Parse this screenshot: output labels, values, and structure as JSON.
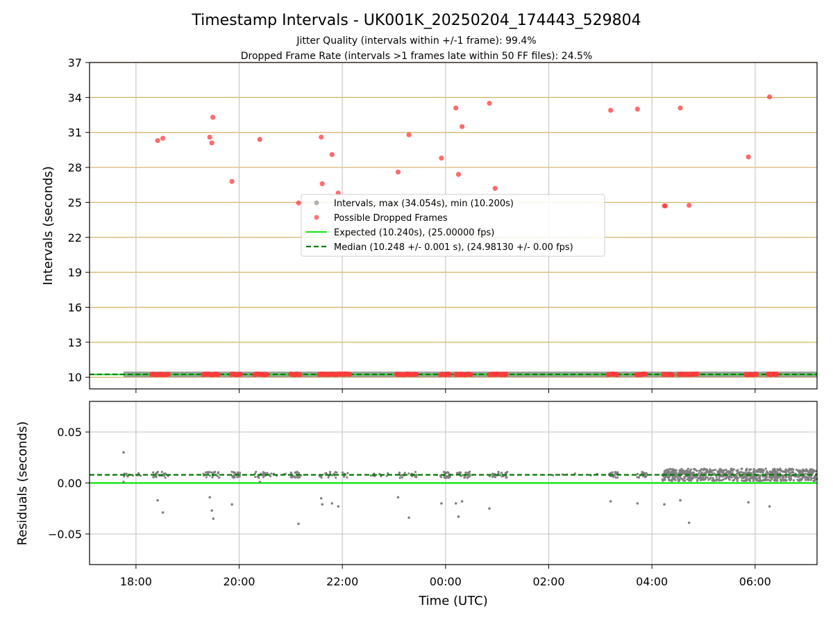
{
  "chart_data": [
    {
      "type": "scatter",
      "title": "Timestamp Intervals - UK001K_20250204_174443_529804",
      "subtitle_lines": [
        "Jitter Quality (intervals within +/-1 frame): 99.4%",
        "Dropped Frame Rate (intervals >1 frames late within 50 FF files): 24.5%"
      ],
      "xlabel": "",
      "ylabel": "Intervals (seconds)",
      "x_unit": "hours since 00:00 UTC (2025-02-05)",
      "xlim": [
        -6.9,
        7.2
      ],
      "ylim": [
        9.0,
        37.0
      ],
      "yticks": [
        10,
        13,
        16,
        19,
        22,
        25,
        28,
        31,
        34,
        37
      ],
      "ytick_labels": [
        "10",
        "13",
        "16",
        "19",
        "22",
        "25",
        "28",
        "31",
        "34",
        "37"
      ],
      "grid": true,
      "legend_position": "center",
      "legend": [
        "Intervals, max (34.054s), min (10.200s)",
        "Possible Dropped Frames",
        "Expected (10.240s), (25.00000 fps)",
        "Median (10.248 +/- 0.001 s), (24.98130 +/- 0.00 fps)"
      ],
      "series": [
        {
          "name": "Intervals, max (34.054s), min (10.200s)",
          "style": "points",
          "color": "#808080",
          "x_start": -6.24,
          "x_end": 7.2,
          "y_base": 10.248
        },
        {
          "name": "Possible Dropped Frames",
          "style": "points",
          "color": "#ff3b3b",
          "points": [
            [
              -5.58,
              30.3
            ],
            [
              -5.48,
              30.5
            ],
            [
              -4.57,
              30.6
            ],
            [
              -4.53,
              30.1
            ],
            [
              -4.51,
              32.3
            ],
            [
              -4.14,
              26.8
            ],
            [
              -3.6,
              30.4
            ],
            [
              -2.85,
              24.95
            ],
            [
              -2.41,
              30.6
            ],
            [
              -2.39,
              26.6
            ],
            [
              -2.2,
              29.1
            ],
            [
              -2.08,
              25.8
            ],
            [
              -0.92,
              27.6
            ],
            [
              -0.71,
              30.8
            ],
            [
              -0.08,
              28.8
            ],
            [
              0.2,
              33.1
            ],
            [
              0.25,
              27.4
            ],
            [
              0.32,
              31.5
            ],
            [
              0.85,
              33.5
            ],
            [
              0.96,
              26.2
            ],
            [
              3.2,
              32.9
            ],
            [
              3.72,
              33.0
            ],
            [
              4.24,
              24.7
            ],
            [
              4.26,
              24.7
            ],
            [
              4.55,
              33.1
            ],
            [
              4.72,
              24.75
            ],
            [
              5.87,
              28.9
            ],
            [
              6.28,
              34.05
            ]
          ],
          "floor_clusters": [
            [
              -5.7,
              -5.35
            ],
            [
              -4.7,
              -4.38
            ],
            [
              -4.15,
              -3.95
            ],
            [
              -3.7,
              -3.45
            ],
            [
              -3.0,
              -2.8
            ],
            [
              -2.45,
              -1.85
            ],
            [
              -0.95,
              -0.55
            ],
            [
              -0.1,
              0.1
            ],
            [
              0.2,
              0.5
            ],
            [
              0.85,
              1.2
            ],
            [
              3.15,
              3.35
            ],
            [
              3.7,
              3.9
            ],
            [
              4.22,
              4.42
            ],
            [
              4.52,
              4.9
            ],
            [
              5.82,
              6.05
            ],
            [
              6.25,
              6.45
            ]
          ]
        },
        {
          "name": "Expected (10.240s), (25.00000 fps)",
          "style": "solid-line",
          "color": "#18e818",
          "y": 10.24
        },
        {
          "name": "Median (10.248 +/- 0.001 s), (24.98130 +/- 0.00 fps)",
          "style": "dashed-line",
          "color": "#007a00",
          "y": 10.248
        }
      ]
    },
    {
      "type": "scatter",
      "title": "",
      "xlabel": "Time (UTC)",
      "ylabel": "Residuals (seconds)",
      "x_unit": "hours since 00:00 UTC (2025-02-05)",
      "xlim": [
        -6.9,
        7.2
      ],
      "xticks": [
        -6,
        -4,
        -2,
        0,
        2,
        4,
        6
      ],
      "xtick_labels": [
        "18:00",
        "20:00",
        "22:00",
        "00:00",
        "02:00",
        "04:00",
        "06:00"
      ],
      "ylim": [
        -0.08,
        0.08
      ],
      "yticks": [
        0.05,
        0.0,
        -0.05
      ],
      "ytick_labels": [
        "0.05",
        "0.00",
        "−0.05"
      ],
      "grid": true,
      "series": [
        {
          "name": "Residuals",
          "style": "points",
          "color": "#808080",
          "baseline": 0.008,
          "outliers": [
            [
              -6.24,
              0.03
            ],
            [
              -6.24,
              0.001
            ],
            [
              -5.58,
              -0.017
            ],
            [
              -5.48,
              -0.029
            ],
            [
              -4.57,
              -0.014
            ],
            [
              -4.53,
              -0.027
            ],
            [
              -4.5,
              -0.035
            ],
            [
              -4.14,
              -0.021
            ],
            [
              -3.6,
              0.001
            ],
            [
              -2.85,
              -0.04
            ],
            [
              -2.41,
              -0.015
            ],
            [
              -2.39,
              -0.021
            ],
            [
              -2.2,
              -0.02
            ],
            [
              -2.08,
              -0.023
            ],
            [
              -0.92,
              -0.014
            ],
            [
              -0.71,
              -0.034
            ],
            [
              -0.08,
              -0.02
            ],
            [
              0.2,
              -0.02
            ],
            [
              0.25,
              -0.033
            ],
            [
              0.32,
              -0.018
            ],
            [
              0.85,
              -0.025
            ],
            [
              3.2,
              -0.018
            ],
            [
              3.72,
              -0.02
            ],
            [
              4.24,
              -0.021
            ],
            [
              4.55,
              -0.017
            ],
            [
              4.72,
              -0.039
            ],
            [
              5.87,
              -0.019
            ],
            [
              6.28,
              -0.023
            ]
          ]
        },
        {
          "name": "Expected",
          "style": "solid-line",
          "color": "#18e818",
          "y": 0.0
        },
        {
          "name": "Median",
          "style": "dashed-line",
          "color": "#007a00",
          "y": 0.008
        }
      ]
    }
  ]
}
